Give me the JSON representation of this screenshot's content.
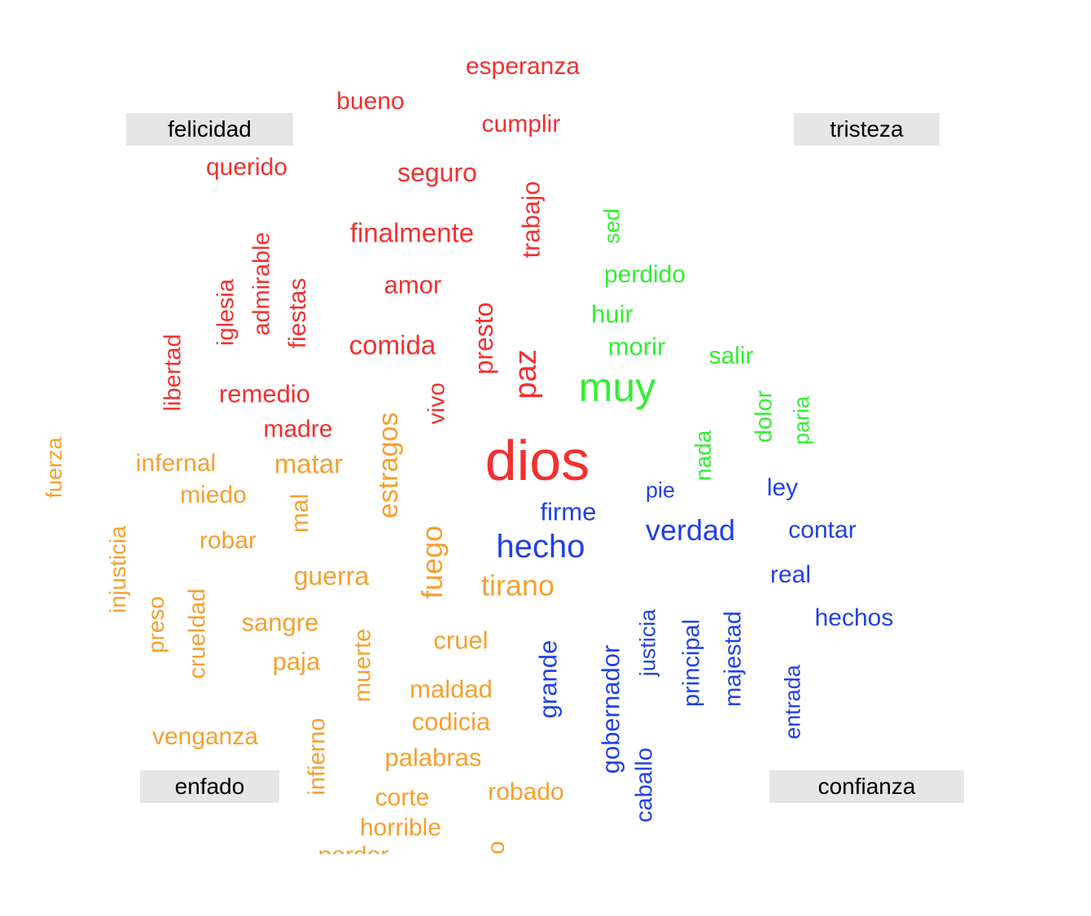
{
  "colors": {
    "felicidad": "#f23030",
    "tristeza": "#33ee33",
    "enfado": "#f5a030",
    "confianza": "#2240e6",
    "label_bg": "#e6e6e6",
    "label_text": "#000000"
  },
  "labels": {
    "felicidad": "felicidad",
    "tristeza": "tristeza",
    "enfado": "enfado",
    "confianza": "confianza"
  },
  "words": [
    {
      "text": "esperanza",
      "group": "felicidad",
      "rotated": false
    },
    {
      "text": "bueno",
      "group": "felicidad",
      "rotated": false
    },
    {
      "text": "cumplir",
      "group": "felicidad",
      "rotated": false
    },
    {
      "text": "querido",
      "group": "felicidad",
      "rotated": false
    },
    {
      "text": "seguro",
      "group": "felicidad",
      "rotated": false
    },
    {
      "text": "trabajo",
      "group": "felicidad",
      "rotated": true
    },
    {
      "text": "finalmente",
      "group": "felicidad",
      "rotated": false
    },
    {
      "text": "admirable",
      "group": "felicidad",
      "rotated": true
    },
    {
      "text": "iglesia",
      "group": "felicidad",
      "rotated": true
    },
    {
      "text": "fiestas",
      "group": "felicidad",
      "rotated": true
    },
    {
      "text": "amor",
      "group": "felicidad",
      "rotated": false
    },
    {
      "text": "presto",
      "group": "felicidad",
      "rotated": true
    },
    {
      "text": "comida",
      "group": "felicidad",
      "rotated": false
    },
    {
      "text": "libertad",
      "group": "felicidad",
      "rotated": true
    },
    {
      "text": "paz",
      "group": "felicidad",
      "rotated": true
    },
    {
      "text": "remedio",
      "group": "felicidad",
      "rotated": false
    },
    {
      "text": "vivo",
      "group": "felicidad",
      "rotated": true
    },
    {
      "text": "madre",
      "group": "felicidad",
      "rotated": false
    },
    {
      "text": "dios",
      "group": "felicidad",
      "rotated": false
    },
    {
      "text": "sed",
      "group": "tristeza",
      "rotated": true
    },
    {
      "text": "perdido",
      "group": "tristeza",
      "rotated": false
    },
    {
      "text": "huir",
      "group": "tristeza",
      "rotated": false
    },
    {
      "text": "morir",
      "group": "tristeza",
      "rotated": false
    },
    {
      "text": "salir",
      "group": "tristeza",
      "rotated": false
    },
    {
      "text": "muy",
      "group": "tristeza",
      "rotated": false
    },
    {
      "text": "dolor",
      "group": "tristeza",
      "rotated": true
    },
    {
      "text": "paria",
      "group": "tristeza",
      "rotated": true
    },
    {
      "text": "nada",
      "group": "tristeza",
      "rotated": true
    },
    {
      "text": "fuerza",
      "group": "enfado",
      "rotated": true
    },
    {
      "text": "infernal",
      "group": "enfado",
      "rotated": false
    },
    {
      "text": "matar",
      "group": "enfado",
      "rotated": false
    },
    {
      "text": "estragos",
      "group": "enfado",
      "rotated": true
    },
    {
      "text": "miedo",
      "group": "enfado",
      "rotated": false
    },
    {
      "text": "mal",
      "group": "enfado",
      "rotated": true
    },
    {
      "text": "injusticia",
      "group": "enfado",
      "rotated": true
    },
    {
      "text": "robar",
      "group": "enfado",
      "rotated": false
    },
    {
      "text": "fuego",
      "group": "enfado",
      "rotated": true
    },
    {
      "text": "guerra",
      "group": "enfado",
      "rotated": false
    },
    {
      "text": "tirano",
      "group": "enfado",
      "rotated": false
    },
    {
      "text": "preso",
      "group": "enfado",
      "rotated": true
    },
    {
      "text": "crueldad",
      "group": "enfado",
      "rotated": true
    },
    {
      "text": "sangre",
      "group": "enfado",
      "rotated": false
    },
    {
      "text": "muerte",
      "group": "enfado",
      "rotated": true
    },
    {
      "text": "cruel",
      "group": "enfado",
      "rotated": false
    },
    {
      "text": "paja",
      "group": "enfado",
      "rotated": false
    },
    {
      "text": "maldad",
      "group": "enfado",
      "rotated": false
    },
    {
      "text": "codicia",
      "group": "enfado",
      "rotated": false
    },
    {
      "text": "venganza",
      "group": "enfado",
      "rotated": false
    },
    {
      "text": "infierno",
      "group": "enfado",
      "rotated": true
    },
    {
      "text": "palabras",
      "group": "enfado",
      "rotated": false
    },
    {
      "text": "corte",
      "group": "enfado",
      "rotated": false
    },
    {
      "text": "robado",
      "group": "enfado",
      "rotated": false
    },
    {
      "text": "horrible",
      "group": "enfado",
      "rotated": false
    },
    {
      "text": "perder",
      "group": "enfado",
      "rotated": false
    },
    {
      "text": "o",
      "group": "enfado",
      "rotated": true
    },
    {
      "text": "pie",
      "group": "confianza",
      "rotated": false
    },
    {
      "text": "ley",
      "group": "confianza",
      "rotated": false
    },
    {
      "text": "firme",
      "group": "confianza",
      "rotated": false
    },
    {
      "text": "verdad",
      "group": "confianza",
      "rotated": false
    },
    {
      "text": "contar",
      "group": "confianza",
      "rotated": false
    },
    {
      "text": "hecho",
      "group": "confianza",
      "rotated": false
    },
    {
      "text": "real",
      "group": "confianza",
      "rotated": false
    },
    {
      "text": "justicia",
      "group": "confianza",
      "rotated": true
    },
    {
      "text": "hechos",
      "group": "confianza",
      "rotated": false
    },
    {
      "text": "grande",
      "group": "confianza",
      "rotated": true
    },
    {
      "text": "gobernador",
      "group": "confianza",
      "rotated": true
    },
    {
      "text": "principal",
      "group": "confianza",
      "rotated": true
    },
    {
      "text": "majestad",
      "group": "confianza",
      "rotated": true
    },
    {
      "text": "entrada",
      "group": "confianza",
      "rotated": true
    },
    {
      "text": "caballo",
      "group": "confianza",
      "rotated": true
    }
  ]
}
